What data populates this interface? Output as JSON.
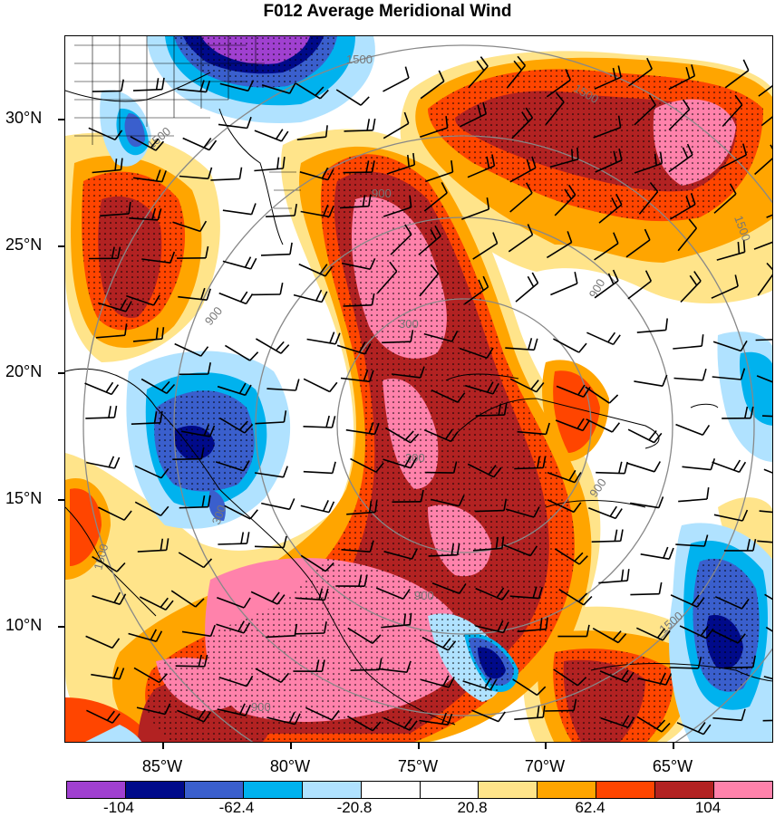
{
  "title": "F012 Average Meridional Wind",
  "lat_labels": [
    "30°N",
    "25°N",
    "20°N",
    "15°N",
    "10°N"
  ],
  "lon_labels": [
    "85°W",
    "80°W",
    "75°W",
    "70°W",
    "65°W"
  ],
  "colorbar": {
    "labels": [
      "-104",
      "-62.4",
      "-20.8",
      "20.8",
      "62.4",
      "104"
    ],
    "colors": [
      "#a040d0",
      "#000a8a",
      "#3a5fcd",
      "#00b2ee",
      "#b0e2ff",
      "#ffffff",
      "#ffffff",
      "#ffe48a",
      "#ffa500",
      "#ff4500",
      "#b22222",
      "#ff82ab"
    ]
  },
  "contour_labels": [
    "1500",
    "1500",
    "900",
    "300",
    "900",
    "1500",
    "300",
    "900",
    "1500",
    "900",
    "300",
    "900",
    "1500",
    "1500",
    "900"
  ],
  "stipple_note": "",
  "palette": {
    "purple": "#a040d0",
    "navy": "#000a8a",
    "royal": "#3a5fcd",
    "cyan": "#00b2ee",
    "lightblue": "#b0e2ff",
    "yellow": "#ffe48a",
    "orange": "#ffa500",
    "redorange": "#ff4500",
    "darkred": "#b22222",
    "pink": "#ff82ab"
  }
}
